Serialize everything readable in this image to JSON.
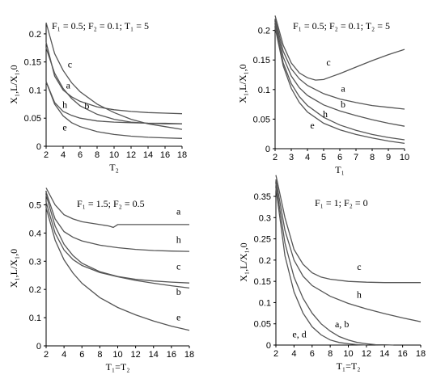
{
  "chart_data": [
    {
      "type": "line",
      "title": "F₁ = 0.5; F₂ = 0.1; T₁ = 5",
      "xlabel": "T₂",
      "ylabel": "X₁,L/X₁,0",
      "xlim": [
        2,
        18
      ],
      "ylim": [
        0,
        0.22
      ],
      "xticks": [
        "2",
        "4",
        "6",
        "8",
        "10",
        "12",
        "14",
        "16",
        "18"
      ],
      "yticks": [
        "0",
        "0.05",
        "0.1",
        "0.15",
        "0.2"
      ],
      "series": [
        {
          "name": "c",
          "x": [
            2,
            3,
            4,
            5,
            6,
            8,
            10,
            12,
            14,
            16,
            18
          ],
          "values": [
            0.22,
            0.165,
            0.135,
            0.113,
            0.097,
            0.075,
            0.06,
            0.048,
            0.04,
            0.035,
            0.03
          ]
        },
        {
          "name": "a",
          "x": [
            2,
            3,
            4,
            5,
            6,
            8,
            10,
            12,
            14,
            16,
            18
          ],
          "values": [
            0.185,
            0.125,
            0.1,
            0.088,
            0.08,
            0.07,
            0.065,
            0.062,
            0.06,
            0.059,
            0.058
          ]
        },
        {
          "name": "b",
          "x": [
            2,
            3,
            4,
            5,
            6,
            8,
            10,
            12,
            14,
            16,
            18
          ],
          "values": [
            0.175,
            0.13,
            0.103,
            0.085,
            0.072,
            0.057,
            0.048,
            0.043,
            0.041,
            0.04,
            0.04
          ]
        },
        {
          "name": "h",
          "x": [
            2,
            3,
            4,
            5,
            6,
            8,
            10,
            12,
            14,
            16,
            18
          ],
          "values": [
            0.115,
            0.078,
            0.062,
            0.055,
            0.05,
            0.045,
            0.043,
            0.042,
            0.041,
            0.041,
            0.04
          ]
        },
        {
          "name": "e",
          "x": [
            2,
            3,
            4,
            5,
            6,
            8,
            10,
            12,
            14,
            16,
            18
          ],
          "values": [
            0.115,
            0.075,
            0.054,
            0.042,
            0.035,
            0.026,
            0.021,
            0.018,
            0.016,
            0.015,
            0.014
          ]
        }
      ],
      "labels": [
        {
          "text": "c",
          "x": 4.8,
          "y": 0.14
        },
        {
          "text": "a",
          "x": 4.6,
          "y": 0.103
        },
        {
          "text": "h",
          "x": 4.2,
          "y": 0.068
        },
        {
          "text": "b",
          "x": 6.8,
          "y": 0.066
        },
        {
          "text": "e",
          "x": 4.2,
          "y": 0.028
        }
      ]
    },
    {
      "type": "line",
      "title": "F₁ = 0.5; F₂ = 0.1; T₂ = 5",
      "xlabel": "T₁",
      "ylabel": "X₁,L/X₁,0",
      "xlim": [
        2,
        10
      ],
      "ylim": [
        0,
        0.22
      ],
      "xticks": [
        "2",
        "3",
        "4",
        "5",
        "6",
        "7",
        "8",
        "9",
        "10"
      ],
      "yticks": [
        "0",
        "0.05",
        "0.1",
        "0.15",
        "0.2"
      ],
      "series": [
        {
          "name": "c",
          "x": [
            2,
            2.5,
            3,
            3.5,
            4,
            4.5,
            5,
            5.5,
            6,
            7,
            8,
            9,
            10
          ],
          "values": [
            0.225,
            0.175,
            0.145,
            0.128,
            0.12,
            0.116,
            0.117,
            0.122,
            0.127,
            0.138,
            0.149,
            0.159,
            0.168
          ]
        },
        {
          "name": "a",
          "x": [
            2,
            2.5,
            3,
            3.5,
            4,
            5,
            6,
            7,
            8,
            9,
            10
          ],
          "values": [
            0.22,
            0.165,
            0.135,
            0.118,
            0.107,
            0.093,
            0.084,
            0.078,
            0.073,
            0.07,
            0.067
          ]
        },
        {
          "name": "b",
          "x": [
            2,
            2.5,
            3,
            3.5,
            4,
            5,
            6,
            7,
            8,
            9,
            10
          ],
          "values": [
            0.215,
            0.155,
            0.123,
            0.103,
            0.09,
            0.074,
            0.064,
            0.056,
            0.049,
            0.043,
            0.038
          ]
        },
        {
          "name": "h",
          "x": [
            2,
            2.5,
            3,
            3.5,
            4,
            5,
            6,
            7,
            8,
            9,
            10
          ],
          "values": [
            0.21,
            0.145,
            0.11,
            0.088,
            0.073,
            0.053,
            0.04,
            0.031,
            0.024,
            0.019,
            0.015
          ]
        },
        {
          "name": "e",
          "x": [
            2,
            2.5,
            3,
            3.5,
            4,
            5,
            6,
            7,
            8,
            9,
            10
          ],
          "values": [
            0.205,
            0.14,
            0.102,
            0.078,
            0.062,
            0.043,
            0.032,
            0.024,
            0.018,
            0.013,
            0.009
          ]
        }
      ],
      "labels": [
        {
          "text": "c",
          "x": 5.3,
          "y": 0.141
        },
        {
          "text": "a",
          "x": 6.2,
          "y": 0.096
        },
        {
          "text": "b",
          "x": 6.2,
          "y": 0.07
        },
        {
          "text": "h",
          "x": 5.1,
          "y": 0.053
        },
        {
          "text": "e",
          "x": 4.3,
          "y": 0.034
        }
      ]
    },
    {
      "type": "line",
      "title": "F₁ = 1.5;  F₂ = 0.5",
      "xlabel": "T₁=T₂",
      "ylabel": "X₁,L/X₁,0",
      "xlim": [
        2,
        18
      ],
      "ylim": [
        0,
        0.55
      ],
      "xticks": [
        "2",
        "4",
        "6",
        "8",
        "10",
        "12",
        "14",
        "16",
        "18"
      ],
      "yticks": [
        "0",
        "0.1",
        "0.2",
        "0.3",
        "0.4",
        "0.5"
      ],
      "series": [
        {
          "name": "a",
          "x": [
            2,
            3,
            4,
            5,
            6,
            7,
            8,
            9,
            9.5,
            10,
            12,
            14,
            16,
            18
          ],
          "values": [
            0.56,
            0.5,
            0.465,
            0.45,
            0.44,
            0.435,
            0.43,
            0.425,
            0.42,
            0.43,
            0.43,
            0.43,
            0.43,
            0.43
          ]
        },
        {
          "name": "h",
          "x": [
            2,
            3,
            4,
            5,
            6,
            8,
            10,
            12,
            14,
            16,
            18
          ],
          "values": [
            0.545,
            0.45,
            0.405,
            0.385,
            0.372,
            0.357,
            0.348,
            0.342,
            0.338,
            0.336,
            0.335
          ]
        },
        {
          "name": "c",
          "x": [
            2,
            3,
            4,
            5,
            6,
            8,
            10,
            12,
            14,
            16,
            18
          ],
          "values": [
            0.535,
            0.425,
            0.36,
            0.32,
            0.293,
            0.263,
            0.246,
            0.236,
            0.23,
            0.226,
            0.223
          ]
        },
        {
          "name": "b",
          "x": [
            2,
            3,
            4,
            5,
            6,
            8,
            10,
            12,
            14,
            16,
            18
          ],
          "values": [
            0.51,
            0.4,
            0.34,
            0.306,
            0.285,
            0.26,
            0.245,
            0.232,
            0.222,
            0.213,
            0.205
          ]
        },
        {
          "name": "e",
          "x": [
            2,
            3,
            4,
            5,
            6,
            8,
            10,
            12,
            14,
            16,
            18
          ],
          "values": [
            0.49,
            0.375,
            0.305,
            0.258,
            0.222,
            0.171,
            0.136,
            0.11,
            0.088,
            0.07,
            0.055
          ]
        }
      ],
      "labels": [
        {
          "text": "a",
          "x": 16.8,
          "y": 0.465
        },
        {
          "text": "h",
          "x": 16.8,
          "y": 0.365
        },
        {
          "text": "c",
          "x": 16.8,
          "y": 0.27
        },
        {
          "text": "b",
          "x": 16.8,
          "y": 0.18
        },
        {
          "text": "e",
          "x": 16.8,
          "y": 0.09
        }
      ]
    },
    {
      "type": "line",
      "title": "F₁ = 1;  F₂ = 0",
      "xlabel": "T₁=T₂",
      "ylabel": "X₁,L/X₁,0",
      "xlim": [
        2,
        18
      ],
      "ylim": [
        0,
        0.39
      ],
      "xticks": [
        "2",
        "4",
        "6",
        "8",
        "10",
        "12",
        "14",
        "16",
        "18"
      ],
      "yticks": [
        "0",
        "0.05",
        "0.1",
        "0.15",
        "0.2",
        "0.25",
        "0.3",
        "0.35"
      ],
      "series": [
        {
          "name": "c",
          "x": [
            2,
            3,
            4,
            5,
            6,
            7,
            8,
            10,
            12,
            14,
            16,
            18
          ],
          "values": [
            0.4,
            0.3,
            0.225,
            0.19,
            0.17,
            0.16,
            0.155,
            0.15,
            0.148,
            0.147,
            0.147,
            0.147
          ]
        },
        {
          "name": "h",
          "x": [
            2,
            3,
            4,
            5,
            6,
            8,
            10,
            12,
            14,
            16,
            18
          ],
          "values": [
            0.39,
            0.27,
            0.2,
            0.162,
            0.14,
            0.115,
            0.098,
            0.085,
            0.074,
            0.064,
            0.055
          ]
        },
        {
          "name": "a, b",
          "x": [
            2,
            3,
            4,
            5,
            6,
            7,
            8,
            9,
            10,
            11,
            12,
            13,
            14,
            15
          ],
          "values": [
            0.38,
            0.24,
            0.16,
            0.11,
            0.075,
            0.05,
            0.033,
            0.02,
            0.012,
            0.006,
            0.003,
            0.001,
            0.0005,
            0
          ]
        },
        {
          "name": "e, d",
          "x": [
            2,
            3,
            4,
            5,
            6,
            7,
            8,
            9,
            10,
            11,
            12
          ],
          "values": [
            0.37,
            0.21,
            0.125,
            0.075,
            0.043,
            0.024,
            0.012,
            0.006,
            0.003,
            0.001,
            0
          ]
        }
      ],
      "labels": [
        {
          "text": "c",
          "x": 11.2,
          "y": 0.177
        },
        {
          "text": "h",
          "x": 11.2,
          "y": 0.111
        },
        {
          "text": "a, b",
          "x": 9.3,
          "y": 0.042
        },
        {
          "text": "e, d",
          "x": 4.6,
          "y": 0.018
        }
      ]
    }
  ]
}
